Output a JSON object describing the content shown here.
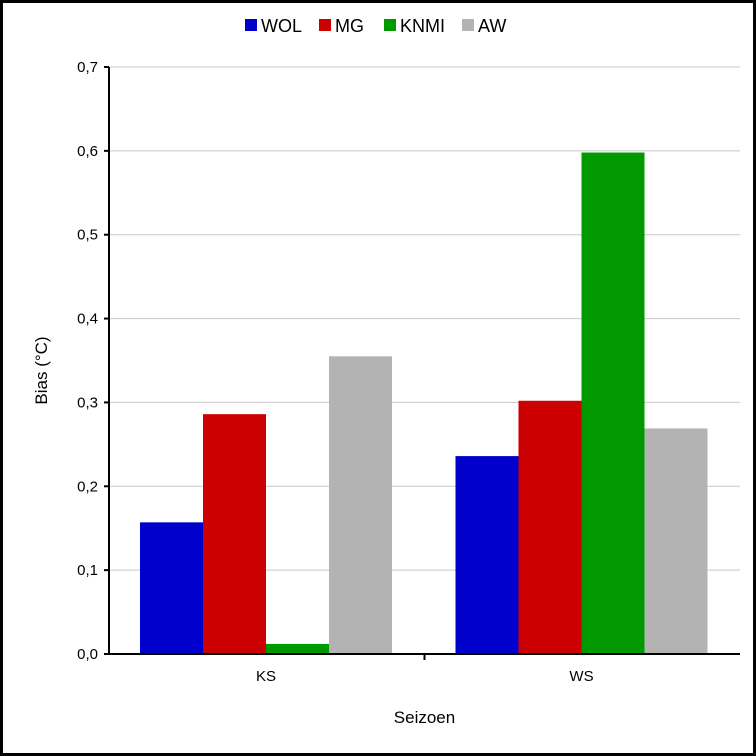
{
  "chart_data": {
    "type": "bar",
    "categories": [
      "KS",
      "WS"
    ],
    "series": [
      {
        "name": "WOL",
        "color": "#0000cc",
        "values": [
          0.157,
          0.236
        ]
      },
      {
        "name": "MG",
        "color": "#cc0000",
        "values": [
          0.286,
          0.302
        ]
      },
      {
        "name": "KNMI",
        "color": "#009900",
        "values": [
          0.012,
          0.598
        ]
      },
      {
        "name": "AW",
        "color": "#b3b3b3",
        "values": [
          0.355,
          0.269
        ]
      }
    ],
    "xlabel": "Seizoen",
    "ylabel": "Bias (°C)",
    "ylim": [
      0,
      0.7
    ],
    "yticks": [
      "0,0",
      "0,1",
      "0,2",
      "0,3",
      "0,4",
      "0,5",
      "0,6",
      "0,7"
    ],
    "grid": true,
    "legend_position": "top"
  }
}
